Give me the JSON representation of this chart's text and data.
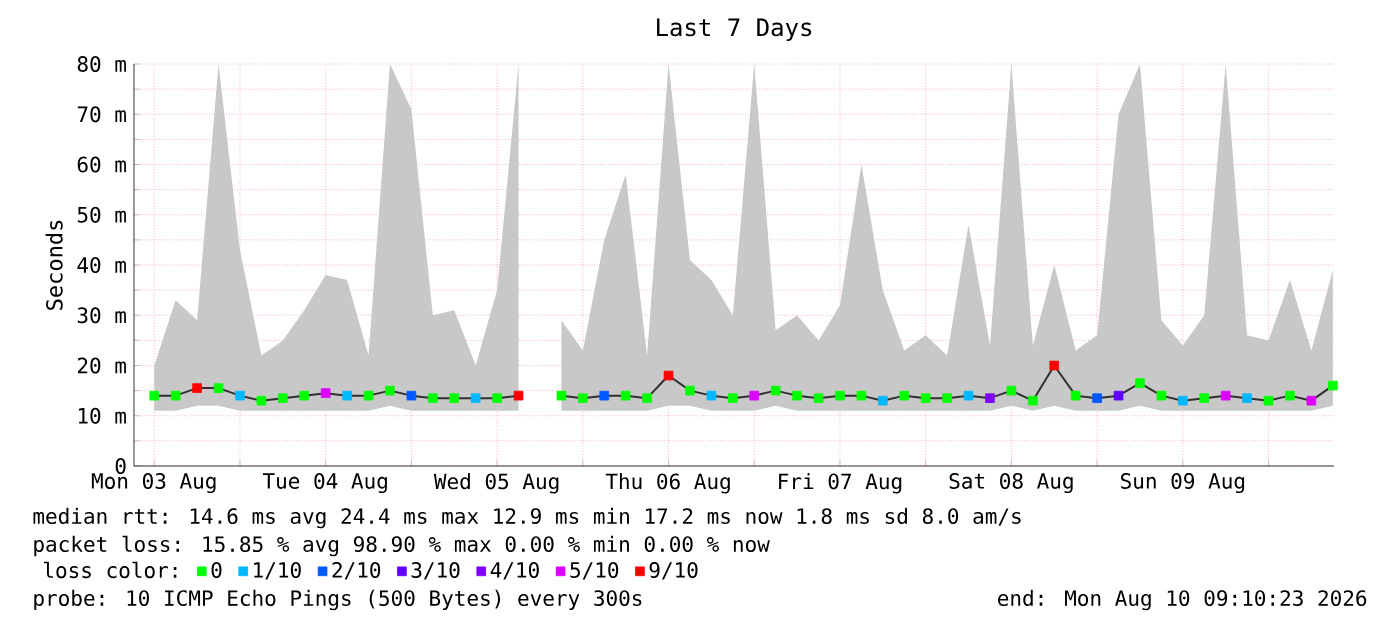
{
  "chart_data": {
    "type": "line",
    "title": "Last 7 Days",
    "ylabel": "Seconds",
    "x": [
      "2026-08-03T12:00",
      "2026-08-03T15:00",
      "2026-08-03T18:00",
      "2026-08-03T21:00",
      "2026-08-04T00:00",
      "2026-08-04T03:00",
      "2026-08-04T06:00",
      "2026-08-04T09:00",
      "2026-08-04T12:00",
      "2026-08-04T15:00",
      "2026-08-04T18:00",
      "2026-08-04T21:00",
      "2026-08-05T00:00",
      "2026-08-05T03:00",
      "2026-08-05T06:00",
      "2026-08-05T09:00",
      "2026-08-05T12:00",
      "2026-08-05T15:00",
      "2026-08-05T18:00",
      "2026-08-05T21:00",
      "2026-08-06T00:00",
      "2026-08-06T03:00",
      "2026-08-06T06:00",
      "2026-08-06T09:00",
      "2026-08-06T12:00",
      "2026-08-06T15:00",
      "2026-08-06T18:00",
      "2026-08-06T21:00",
      "2026-08-07T00:00",
      "2026-08-07T03:00",
      "2026-08-07T06:00",
      "2026-08-07T09:00",
      "2026-08-07T12:00",
      "2026-08-07T15:00",
      "2026-08-07T18:00",
      "2026-08-07T21:00",
      "2026-08-08T00:00",
      "2026-08-08T03:00",
      "2026-08-08T06:00",
      "2026-08-08T09:00",
      "2026-08-08T12:00",
      "2026-08-08T15:00",
      "2026-08-08T18:00",
      "2026-08-08T21:00",
      "2026-08-09T00:00",
      "2026-08-09T03:00",
      "2026-08-09T06:00",
      "2026-08-09T09:00",
      "2026-08-09T12:00",
      "2026-08-09T15:00",
      "2026-08-09T18:00",
      "2026-08-09T21:00",
      "2026-08-10T00:00",
      "2026-08-10T03:00",
      "2026-08-10T06:00",
      "2026-08-10T09:00"
    ],
    "series": [
      {
        "color": "#303030",
        "values": [
          14,
          14,
          15.5,
          15.5,
          14,
          13,
          13.5,
          14,
          14.5,
          14,
          14,
          15,
          14,
          13.5,
          13.5,
          13.5,
          13.5,
          14,
          null,
          14,
          13.5,
          14,
          14,
          13.5,
          18,
          15,
          14,
          13.5,
          14,
          15,
          14,
          13.5,
          14,
          14,
          13,
          14,
          13.5,
          13.5,
          14,
          13.5,
          15,
          13,
          20,
          14,
          13.5,
          14,
          16.5,
          14,
          13,
          13.5,
          14,
          13.5,
          13,
          14,
          13,
          16
        ],
        "lower": [
          11,
          11,
          12,
          12,
          11,
          11,
          11,
          11,
          11,
          11,
          11,
          12,
          11,
          11,
          11,
          11,
          11,
          11,
          null,
          11,
          11,
          11,
          11,
          11,
          12,
          12,
          11,
          11,
          11,
          12,
          11,
          11,
          11,
          11,
          11,
          11,
          11,
          11,
          11,
          11,
          12,
          11,
          12,
          11,
          11,
          11,
          12,
          11,
          11,
          11,
          11,
          11,
          11,
          11,
          11,
          12
        ],
        "upper": [
          20,
          33,
          29,
          80,
          43,
          22,
          25,
          31,
          38,
          37,
          22,
          80,
          71,
          30,
          31,
          20,
          35,
          80,
          null,
          29,
          23,
          45,
          58,
          22,
          80,
          41,
          37,
          30,
          80,
          27,
          30,
          25,
          32,
          60,
          35,
          23,
          26,
          22,
          48,
          24,
          80,
          24,
          40,
          23,
          26,
          70,
          80,
          29,
          24,
          30,
          80,
          26,
          25,
          37,
          23,
          39
        ]
      },
      {
        "type": "scatter",
        "marker": "square",
        "name": "0",
        "color": "#00ff00",
        "x": [
          "2026-08-03T12:00",
          "2026-08-03T15:00",
          "2026-08-03T21:00",
          "2026-08-04T03:00",
          "2026-08-04T06:00",
          "2026-08-04T09:00",
          "2026-08-04T18:00",
          "2026-08-04T21:00",
          "2026-08-05T03:00",
          "2026-08-05T06:00",
          "2026-08-05T12:00",
          "2026-08-05T21:00",
          "2026-08-06T00:00",
          "2026-08-06T06:00",
          "2026-08-06T09:00",
          "2026-08-06T15:00",
          "2026-08-06T21:00",
          "2026-08-07T03:00",
          "2026-08-07T06:00",
          "2026-08-07T09:00",
          "2026-08-07T12:00",
          "2026-08-07T15:00",
          "2026-08-07T21:00",
          "2026-08-08T00:00",
          "2026-08-08T03:00",
          "2026-08-08T12:00",
          "2026-08-08T15:00",
          "2026-08-08T21:00",
          "2026-08-09T06:00",
          "2026-08-09T09:00",
          "2026-08-09T15:00",
          "2026-08-10T00:00",
          "2026-08-10T03:00",
          "2026-08-10T09:00"
        ],
        "values": [
          14,
          14,
          15.5,
          13,
          13.5,
          14,
          14,
          15,
          13.5,
          13.5,
          13.5,
          14,
          13.5,
          14,
          13.5,
          15,
          13.5,
          15,
          14,
          13.5,
          14,
          14,
          14,
          13.5,
          13.5,
          15,
          13,
          14,
          16.5,
          14,
          13.5,
          13,
          14,
          16
        ]
      },
      {
        "type": "scatter",
        "marker": "square",
        "name": "1/10",
        "color": "#00b8ff",
        "x": [
          "2026-08-04T00:00",
          "2026-08-04T15:00",
          "2026-08-05T09:00",
          "2026-08-06T18:00",
          "2026-08-07T18:00",
          "2026-08-08T06:00",
          "2026-08-09T12:00",
          "2026-08-09T21:00"
        ],
        "values": [
          14,
          14,
          13.5,
          14,
          13,
          14,
          13,
          13.5
        ]
      },
      {
        "type": "scatter",
        "marker": "square",
        "name": "2/10",
        "color": "#0059ff",
        "x": [
          "2026-08-05T00:00",
          "2026-08-06T03:00",
          "2026-08-09T00:00"
        ],
        "values": [
          14,
          14,
          13.5
        ]
      },
      {
        "type": "scatter",
        "marker": "square",
        "name": "3/10",
        "color": "#5e00ff",
        "x": [
          "2026-08-09T03:00"
        ],
        "values": [
          14
        ]
      },
      {
        "type": "scatter",
        "marker": "square",
        "name": "4/10",
        "color": "#7e00ff",
        "x": [
          "2026-08-08T09:00"
        ],
        "values": [
          13.5
        ]
      },
      {
        "type": "scatter",
        "marker": "square",
        "name": "5/10",
        "color": "#dd00ff",
        "x": [
          "2026-08-04T12:00",
          "2026-08-07T00:00",
          "2026-08-09T18:00",
          "2026-08-10T06:00"
        ],
        "values": [
          14.5,
          14,
          14,
          13
        ]
      },
      {
        "type": "scatter",
        "marker": "square",
        "name": "9/10",
        "color": "#ff0000",
        "x": [
          "2026-08-03T18:00",
          "2026-08-05T15:00",
          "2026-08-06T12:00",
          "2026-08-08T18:00"
        ],
        "values": [
          15.5,
          14,
          18,
          20
        ]
      }
    ],
    "xlim": [
      "2026-08-03T09:10",
      "2026-08-10T09:10"
    ],
    "xticks": [
      {
        "value": "2026-08-03T12:00",
        "label": "Mon 03 Aug"
      },
      {
        "value": "2026-08-04T00:00",
        "label": null
      },
      {
        "value": "2026-08-04T12:00",
        "label": "Tue 04 Aug"
      },
      {
        "value": "2026-08-05T00:00",
        "label": null
      },
      {
        "value": "2026-08-05T12:00",
        "label": "Wed 05 Aug"
      },
      {
        "value": "2026-08-06T00:00",
        "label": null
      },
      {
        "value": "2026-08-06T12:00",
        "label": "Thu 06 Aug"
      },
      {
        "value": "2026-08-07T00:00",
        "label": null
      },
      {
        "value": "2026-08-07T12:00",
        "label": "Fri 07 Aug"
      },
      {
        "value": "2026-08-08T00:00",
        "label": null
      },
      {
        "value": "2026-08-08T12:00",
        "label": "Sat 08 Aug"
      },
      {
        "value": "2026-08-09T00:00",
        "label": null
      },
      {
        "value": "2026-08-09T12:00",
        "label": "Sun 09 Aug"
      },
      {
        "value": "2026-08-10T00:00",
        "label": null
      }
    ],
    "ylim": [
      0,
      80
    ],
    "yticks": [
      0,
      {
        "value": 5,
        "label": null
      },
      {
        "value": 10,
        "label": "10 m"
      },
      {
        "value": 15,
        "label": null
      },
      {
        "value": 20,
        "label": "20 m"
      },
      {
        "value": 25,
        "label": null
      },
      {
        "value": 30,
        "label": "30 m"
      },
      {
        "value": 35,
        "label": null
      },
      {
        "value": 40,
        "label": "40 m"
      },
      {
        "value": 45,
        "label": null
      },
      {
        "value": 50,
        "label": "50 m"
      },
      {
        "value": 55,
        "label": null
      },
      {
        "value": 60,
        "label": "60 m"
      },
      {
        "value": 65,
        "label": null
      },
      {
        "value": 70,
        "label": "70 m"
      },
      {
        "value": 75,
        "label": null
      },
      {
        "value": 80,
        "label": "80 m"
      }
    ],
    "grid": true,
    "legend": "bottom",
    "legend_title": "loss color:",
    "annotations": [
      "median rtt:  14.6 ms avg  24.4 ms max  12.9 ms min  17.2 ms now  1.8 ms sd  8.0   am/s",
      "packet loss: 15.85 % avg  98.90 % max  0.00 % min  0.00 % now",
      "probe:       10 ICMP Echo Pings (500 Bytes) every 300s",
      "end: Mon Aug 10 09:10:23 2026"
    ]
  }
}
